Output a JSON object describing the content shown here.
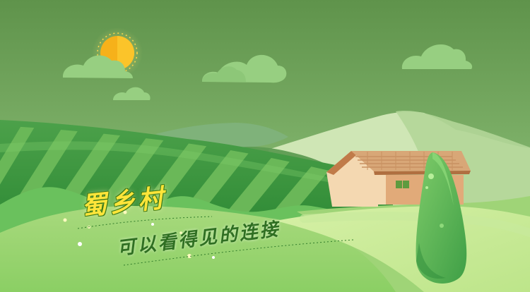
{
  "title": "蜀乡村",
  "subtitle": "可以看得见的连接",
  "colors": {
    "sky_top": "#5f934b",
    "sky_bottom": "#a7cf75",
    "sun": "#f6b11a",
    "cloud": "#97cf81",
    "field_stripe": "#6dba5a",
    "house_wall": "#f4d8b1",
    "house_roof": "#d8a777",
    "tree": "#6dc062",
    "title": "#ffe53a",
    "subtitle": "#2f6f22"
  },
  "icons": [
    "sun-icon",
    "cloud-icon",
    "house-icon",
    "tree-icon",
    "sparkle-icon"
  ]
}
